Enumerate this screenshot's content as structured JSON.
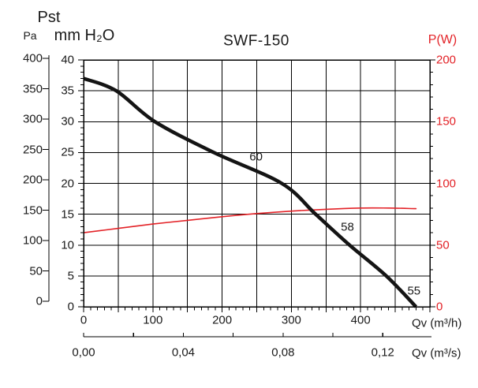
{
  "title": "SWF-150",
  "labels": {
    "pressure_title": "Pst",
    "pa_unit": "Pa",
    "mm_unit": "mm H₂O",
    "power_axis": "P(W)",
    "flow_m3h": "Qv (m³/h)",
    "flow_m3s": "Qv (m³/s)"
  },
  "colors": {
    "accent_red": "#e32227",
    "curve_black": "#141414",
    "text_black": "#1a1a1a",
    "grid_black": "#000000",
    "background": "#ffffff"
  },
  "axis_ticks": {
    "pa": [
      "400",
      "350",
      "300",
      "250",
      "200",
      "150",
      "100",
      "50",
      "0"
    ],
    "mm_h2o": [
      "40",
      "35",
      "30",
      "25",
      "20",
      "15",
      "10",
      "5",
      "0"
    ],
    "power_w": [
      "200",
      "150",
      "100",
      "50",
      "0"
    ],
    "m3h": [
      "0",
      "100",
      "200",
      "300",
      "400"
    ],
    "m3s": [
      "0,00",
      "0,04",
      "0,08",
      "0,12"
    ]
  },
  "chart_data": {
    "type": "line",
    "title": "SWF-150",
    "x_axis": {
      "label": "Qv (m³/h)",
      "min": 0,
      "max": 500,
      "grid_step": 50,
      "label_step": 100,
      "minor_tick_step": 10
    },
    "x_axis_secondary": {
      "label": "Qv (m³/s)",
      "min": 0.0,
      "labeled_ticks": [
        0.0,
        0.04,
        0.08,
        0.12
      ],
      "tick_step": 0.02,
      "conversion": "1 m³/s = 3600 m³/h"
    },
    "y_axis_left_pa": {
      "label": "Pst Pa",
      "min": 0,
      "max": 400,
      "tick_step": 50
    },
    "y_axis_left_mm": {
      "label": "Pst mm H₂O",
      "min": 0,
      "max": 40,
      "grid_step": 5,
      "minor_tick_step": 1
    },
    "y_axis_right": {
      "label": "P(W)",
      "min": 0,
      "max": 200,
      "label_step": 50,
      "minor_tick_step": 10
    },
    "grid": true,
    "legend": "none",
    "series": [
      {
        "name": "static-pressure-curve",
        "color": "#141414",
        "stroke_width": 4.5,
        "x_m3h": [
          0,
          47,
          103,
          188,
          286,
          335,
          384,
          437,
          480
        ],
        "y_mm_h2o": [
          37,
          35,
          30,
          25,
          20,
          15,
          10,
          5,
          0
        ],
        "y_pa_approx": [
          363,
          343,
          294,
          245,
          196,
          147,
          98,
          49,
          0
        ]
      },
      {
        "name": "power-curve",
        "color": "#e32227",
        "stroke_width": 1.6,
        "x_m3h": [
          0,
          50,
          100,
          150,
          200,
          250,
          300,
          350,
          400,
          440,
          480
        ],
        "y_w": [
          60,
          63.5,
          67,
          70,
          73,
          75.5,
          77.5,
          79,
          80,
          80,
          79.5
        ]
      }
    ],
    "annotations": [
      {
        "text": "60",
        "x_m3h": 249,
        "y_mm": 24.3
      },
      {
        "text": "58",
        "x_m3h": 381,
        "y_mm": 12.9
      },
      {
        "text": "55",
        "x_m3h": 477,
        "y_mm": 2.6
      }
    ]
  }
}
